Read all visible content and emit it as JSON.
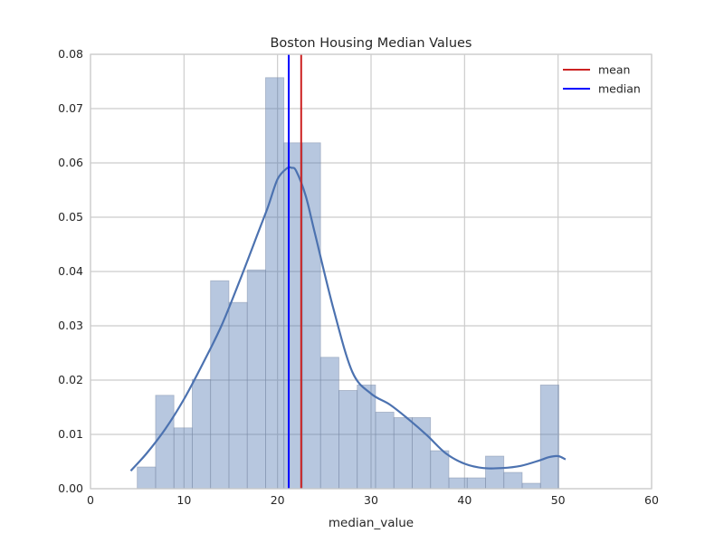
{
  "chart_data": {
    "type": "histogram",
    "title": "Boston Housing Median Values",
    "xlabel": "median_value",
    "ylabel": "",
    "xlim": [
      0,
      60
    ],
    "ylim": [
      0,
      0.08
    ],
    "x_ticks": [
      0,
      10,
      20,
      30,
      40,
      50,
      60
    ],
    "x_tick_labels": [
      "0",
      "10",
      "20",
      "30",
      "40",
      "50",
      "60"
    ],
    "y_ticks": [
      0,
      0.01,
      0.02,
      0.03,
      0.04,
      0.05,
      0.06,
      0.07,
      0.08
    ],
    "y_tick_labels": [
      "0.00",
      "0.01",
      "0.02",
      "0.03",
      "0.04",
      "0.05",
      "0.06",
      "0.07",
      "0.08"
    ],
    "grid": true,
    "legend_position": "top-right",
    "bins": [
      {
        "x0": 5.0,
        "x1": 6.96,
        "density": 0.004
      },
      {
        "x0": 6.96,
        "x1": 8.92,
        "density": 0.0172
      },
      {
        "x0": 8.92,
        "x1": 10.88,
        "density": 0.0112
      },
      {
        "x0": 10.88,
        "x1": 12.84,
        "density": 0.0201
      },
      {
        "x0": 12.84,
        "x1": 14.8,
        "density": 0.0383
      },
      {
        "x0": 14.8,
        "x1": 16.76,
        "density": 0.0343
      },
      {
        "x0": 16.76,
        "x1": 18.72,
        "density": 0.0403
      },
      {
        "x0": 18.72,
        "x1": 20.68,
        "density": 0.0757
      },
      {
        "x0": 20.68,
        "x1": 22.64,
        "density": 0.0637
      },
      {
        "x0": 22.64,
        "x1": 24.6,
        "density": 0.0637
      },
      {
        "x0": 24.6,
        "x1": 26.56,
        "density": 0.0242
      },
      {
        "x0": 26.56,
        "x1": 28.52,
        "density": 0.0181
      },
      {
        "x0": 28.52,
        "x1": 30.48,
        "density": 0.0191
      },
      {
        "x0": 30.48,
        "x1": 32.44,
        "density": 0.0141
      },
      {
        "x0": 32.44,
        "x1": 34.4,
        "density": 0.0131
      },
      {
        "x0": 34.4,
        "x1": 36.36,
        "density": 0.0131
      },
      {
        "x0": 36.36,
        "x1": 38.32,
        "density": 0.007
      },
      {
        "x0": 38.32,
        "x1": 40.28,
        "density": 0.002
      },
      {
        "x0": 40.28,
        "x1": 42.24,
        "density": 0.002
      },
      {
        "x0": 42.24,
        "x1": 44.2,
        "density": 0.006
      },
      {
        "x0": 44.2,
        "x1": 46.16,
        "density": 0.003
      },
      {
        "x0": 46.16,
        "x1": 48.12,
        "density": 0.001
      },
      {
        "x0": 48.12,
        "x1": 50.08,
        "density": 0.0191
      }
    ],
    "kde": {
      "x": [
        4.3,
        6,
        8,
        10,
        12,
        14,
        16,
        18,
        19,
        20,
        21,
        21.5,
        22,
        23,
        24,
        26,
        28,
        30,
        32,
        34,
        36,
        38,
        40,
        42,
        44,
        46,
        48,
        49,
        50,
        50.8
      ],
      "y": [
        0.0033,
        0.0065,
        0.011,
        0.0165,
        0.023,
        0.03,
        0.0385,
        0.0475,
        0.052,
        0.057,
        0.059,
        0.0591,
        0.0585,
        0.054,
        0.047,
        0.033,
        0.0215,
        0.0175,
        0.0155,
        0.0128,
        0.0098,
        0.0065,
        0.0046,
        0.0038,
        0.0038,
        0.0042,
        0.0052,
        0.0058,
        0.006,
        0.0054
      ]
    },
    "mean": 22.53,
    "median": 21.2,
    "legend": [
      {
        "label": "mean",
        "color": "#cc2222"
      },
      {
        "label": "median",
        "color": "#0000ff"
      }
    ],
    "colors": {
      "bar_fill": "#4c72b0",
      "bar_fill_opacity": 0.4,
      "kde_line": "#4c72b0",
      "mean_line": "#cc2222",
      "median_line": "#0000ff",
      "grid": "#cccccc"
    }
  }
}
